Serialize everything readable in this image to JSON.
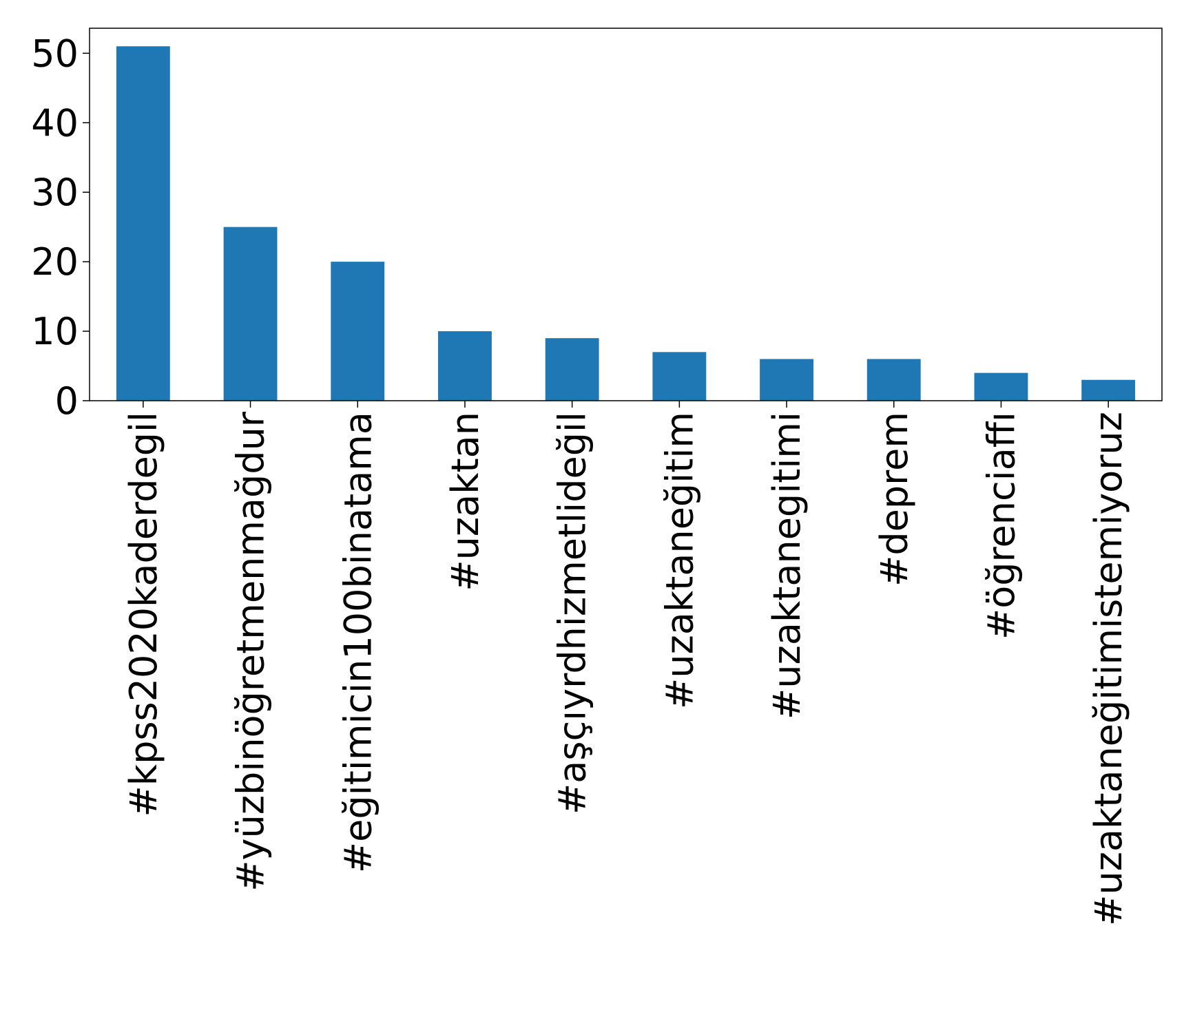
{
  "chart_data": {
    "type": "bar",
    "categories": [
      "#kpss2020kaderdegil",
      "#yüzbinöğretmenmağdur",
      "#eğitimicin100binatama",
      "#uzaktan",
      "#aşçıyrdhizmetlideğil",
      "#uzaktaneğitim",
      "#uzaktanegitimi",
      "#deprem",
      "#öğrenciaffı",
      "#uzaktaneğitimistemiyoruz"
    ],
    "values": [
      51,
      25,
      20,
      10,
      9,
      7,
      6,
      6,
      4,
      3
    ],
    "color": "#1f77b4",
    "ylim": [
      0,
      53.6
    ],
    "yticks": [
      0,
      10,
      20,
      30,
      40,
      50
    ],
    "grid": false
  }
}
